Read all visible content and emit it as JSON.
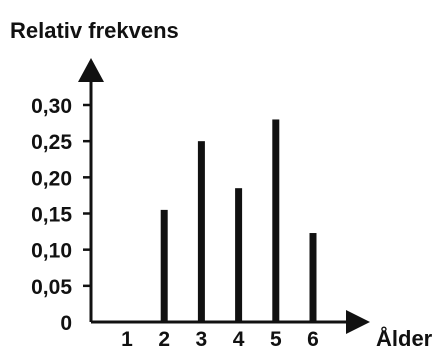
{
  "chart_data": {
    "type": "bar",
    "title": "",
    "ylabel": "Relativ frekvens",
    "xlabel": "Ålder",
    "categories": [
      "1",
      "2",
      "3",
      "4",
      "5",
      "6"
    ],
    "values": [
      0,
      0.155,
      0.25,
      0.185,
      0.28,
      0.123
    ],
    "yticks": [
      "0",
      "0,05",
      "0,10",
      "0,15",
      "0,20",
      "0,25",
      "0,30"
    ],
    "ytick_values": [
      0,
      0.05,
      0.1,
      0.15,
      0.2,
      0.25,
      0.3
    ],
    "ylim": [
      0,
      0.3
    ],
    "grid": false,
    "legend": "none",
    "colors": {
      "ink": "#111111",
      "background": "#ffffff"
    }
  }
}
